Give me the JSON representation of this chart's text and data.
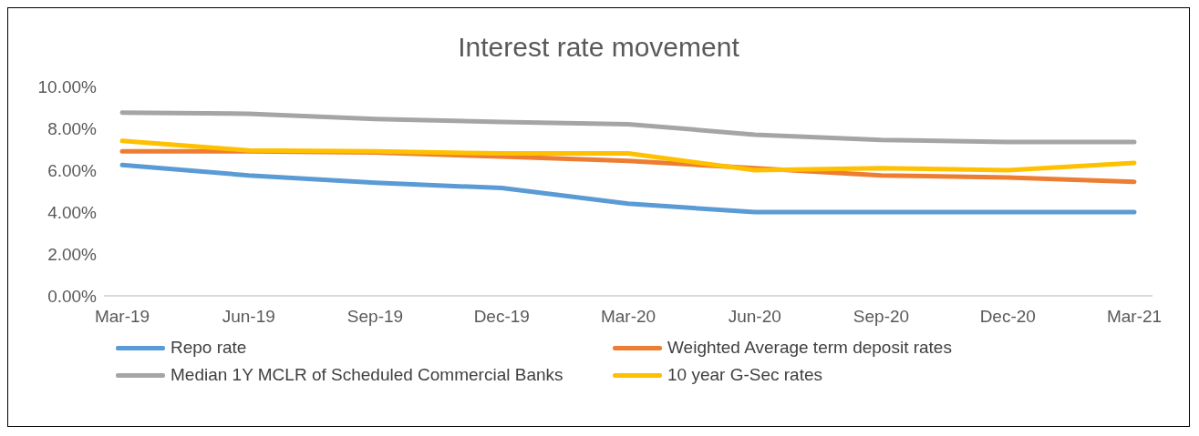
{
  "chart_data": {
    "type": "line",
    "title": "Interest rate movement",
    "categories": [
      "Mar-19",
      "Jun-19",
      "Sep-19",
      "Dec-19",
      "Mar-20",
      "Jun-20",
      "Sep-20",
      "Dec-20",
      "Mar-21"
    ],
    "series": [
      {
        "name": "Repo rate",
        "color": "#5b9bd5",
        "values": [
          6.25,
          5.75,
          5.4,
          5.15,
          4.4,
          4.0,
          4.0,
          4.0,
          4.0
        ]
      },
      {
        "name": "Weighted Average term deposit rates",
        "color": "#ed7d31",
        "values": [
          6.9,
          6.9,
          6.85,
          6.65,
          6.45,
          6.1,
          5.75,
          5.65,
          5.45
        ]
      },
      {
        "name": "Median 1Y MCLR of Scheduled Commercial Banks",
        "color": "#a5a5a5",
        "values": [
          8.75,
          8.7,
          8.45,
          8.3,
          8.2,
          7.7,
          7.45,
          7.35,
          7.35
        ]
      },
      {
        "name": "10 year G-Sec rates",
        "color": "#ffc000",
        "values": [
          7.4,
          6.95,
          6.9,
          6.8,
          6.8,
          6.0,
          6.1,
          6.0,
          6.35
        ]
      }
    ],
    "ylim": [
      0,
      10
    ],
    "yticks": [
      {
        "value": 0,
        "label": "0.00%"
      },
      {
        "value": 2,
        "label": "2.00%"
      },
      {
        "value": 4,
        "label": "4.00%"
      },
      {
        "value": 6,
        "label": "6.00%"
      },
      {
        "value": 8,
        "label": "8.00%"
      },
      {
        "value": 10,
        "label": "10.00%"
      }
    ],
    "legend": "bottom",
    "marker": "none",
    "line_style": "solid"
  }
}
